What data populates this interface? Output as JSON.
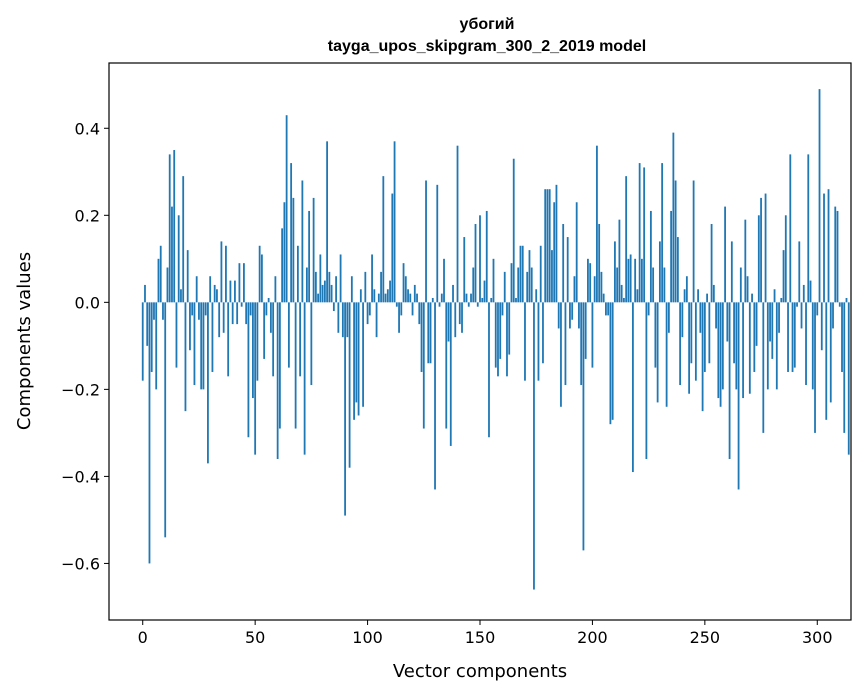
{
  "chart_data": {
    "type": "bar",
    "title": "убогий",
    "subtitle": "tayga_upos_skipgram_300_2_2019 model",
    "xlabel": "Vector components",
    "ylabel": "Components values",
    "xlim": [
      -15,
      315
    ],
    "ylim": [
      -0.73,
      0.55
    ],
    "xticks": [
      0,
      50,
      100,
      150,
      200,
      250,
      300
    ],
    "yticks": [
      -0.6,
      -0.4,
      -0.2,
      0.0,
      0.2,
      0.4
    ],
    "ytick_labels": [
      "−0.6",
      "−0.4",
      "−0.2",
      "0.0",
      "0.2",
      "0.4"
    ],
    "bar_color": "#1f77b4",
    "grid": false,
    "values": [
      -0.18,
      0.04,
      -0.1,
      -0.6,
      -0.16,
      -0.04,
      -0.2,
      0.1,
      0.13,
      -0.04,
      -0.54,
      0.08,
      0.34,
      0.22,
      0.35,
      -0.15,
      0.2,
      0.03,
      0.29,
      -0.25,
      0.12,
      -0.11,
      -0.03,
      -0.19,
      0.06,
      -0.04,
      -0.2,
      -0.2,
      -0.03,
      -0.37,
      0.06,
      -0.16,
      0.04,
      0.03,
      -0.08,
      0.14,
      -0.07,
      0.13,
      -0.17,
      0.05,
      -0.05,
      0.05,
      -0.05,
      0.09,
      -0.01,
      0.09,
      -0.05,
      -0.31,
      -0.03,
      -0.22,
      -0.35,
      -0.18,
      0.13,
      0.11,
      -0.13,
      -0.03,
      0.01,
      -0.07,
      -0.17,
      0.06,
      -0.36,
      -0.29,
      0.17,
      0.23,
      0.43,
      -0.15,
      0.32,
      0.24,
      -0.29,
      0.13,
      -0.17,
      0.28,
      -0.35,
      0.08,
      0.21,
      -0.19,
      0.24,
      0.07,
      0.02,
      0.11,
      0.04,
      0.05,
      0.37,
      0.07,
      0.04,
      -0.02,
      0.06,
      -0.07,
      0.11,
      -0.08,
      -0.49,
      -0.08,
      -0.38,
      0.06,
      -0.27,
      -0.23,
      -0.26,
      0.03,
      -0.24,
      0.07,
      -0.05,
      -0.03,
      0.11,
      0.03,
      -0.08,
      0.02,
      0.07,
      0.29,
      0.02,
      0.03,
      0.05,
      0.25,
      0.37,
      -0.01,
      -0.07,
      -0.03,
      0.09,
      0.06,
      0.03,
      0.02,
      -0.03,
      0.04,
      0.02,
      -0.05,
      -0.16,
      -0.29,
      0.28,
      -0.14,
      -0.14,
      0.01,
      -0.43,
      0.27,
      -0.01,
      0.02,
      0.1,
      -0.29,
      -0.09,
      -0.33,
      0.04,
      -0.08,
      0.36,
      -0.05,
      -0.07,
      0.15,
      0.02,
      -0.01,
      0.02,
      0.08,
      0.18,
      -0.01,
      0.2,
      0.01,
      0.05,
      0.21,
      -0.31,
      0.01,
      0.1,
      -0.15,
      -0.17,
      -0.13,
      -0.03,
      0.07,
      -0.17,
      -0.12,
      0.09,
      0.33,
      0.01,
      0.08,
      0.13,
      0.13,
      -0.18,
      0.07,
      0.12,
      0.08,
      -0.66,
      0.03,
      -0.18,
      0.13,
      -0.14,
      0.26,
      0.26,
      0.26,
      0.12,
      0.23,
      0.27,
      -0.06,
      -0.24,
      0.18,
      -0.19,
      0.15,
      -0.06,
      -0.04,
      0.06,
      0.23,
      -0.06,
      -0.19,
      -0.57,
      -0.13,
      0.1,
      0.09,
      -0.15,
      0.06,
      0.36,
      0.18,
      0.07,
      0.02,
      -0.03,
      -0.03,
      -0.28,
      -0.27,
      0.14,
      0.08,
      0.19,
      0.04,
      0.01,
      0.29,
      0.1,
      0.11,
      -0.39,
      0.1,
      0.03,
      0.32,
      0.1,
      0.31,
      -0.36,
      -0.03,
      0.21,
      0.08,
      -0.15,
      -0.23,
      0.14,
      0.32,
      0.08,
      -0.24,
      -0.07,
      0.21,
      0.39,
      0.28,
      0.15,
      -0.19,
      -0.08,
      0.03,
      0.06,
      -0.21,
      -0.14,
      0.28,
      -0.18,
      0.03,
      -0.07,
      -0.25,
      -0.16,
      0.02,
      -0.14,
      0.18,
      0.04,
      -0.06,
      -0.22,
      -0.24,
      -0.2,
      0.22,
      -0.09,
      -0.36,
      0.14,
      -0.14,
      -0.2,
      -0.43,
      0.08,
      -0.22,
      0.19,
      0.06,
      -0.21,
      0.02,
      -0.16,
      -0.1,
      0.2,
      0.24,
      -0.3,
      0.25,
      -0.2,
      -0.09,
      -0.13,
      0.03,
      -0.2,
      -0.07,
      0.01,
      0.12,
      0.2,
      -0.16,
      0.34,
      -0.16,
      -0.15,
      -0.01,
      0.14,
      -0.06,
      0.04,
      -0.19,
      0.34,
      0.05,
      -0.2,
      -0.3,
      -0.03,
      0.49,
      -0.11,
      0.25,
      -0.27,
      0.26,
      -0.23,
      -0.06,
      0.22,
      0.21,
      -0.01,
      -0.16,
      -0.3,
      0.01,
      -0.35
    ]
  }
}
